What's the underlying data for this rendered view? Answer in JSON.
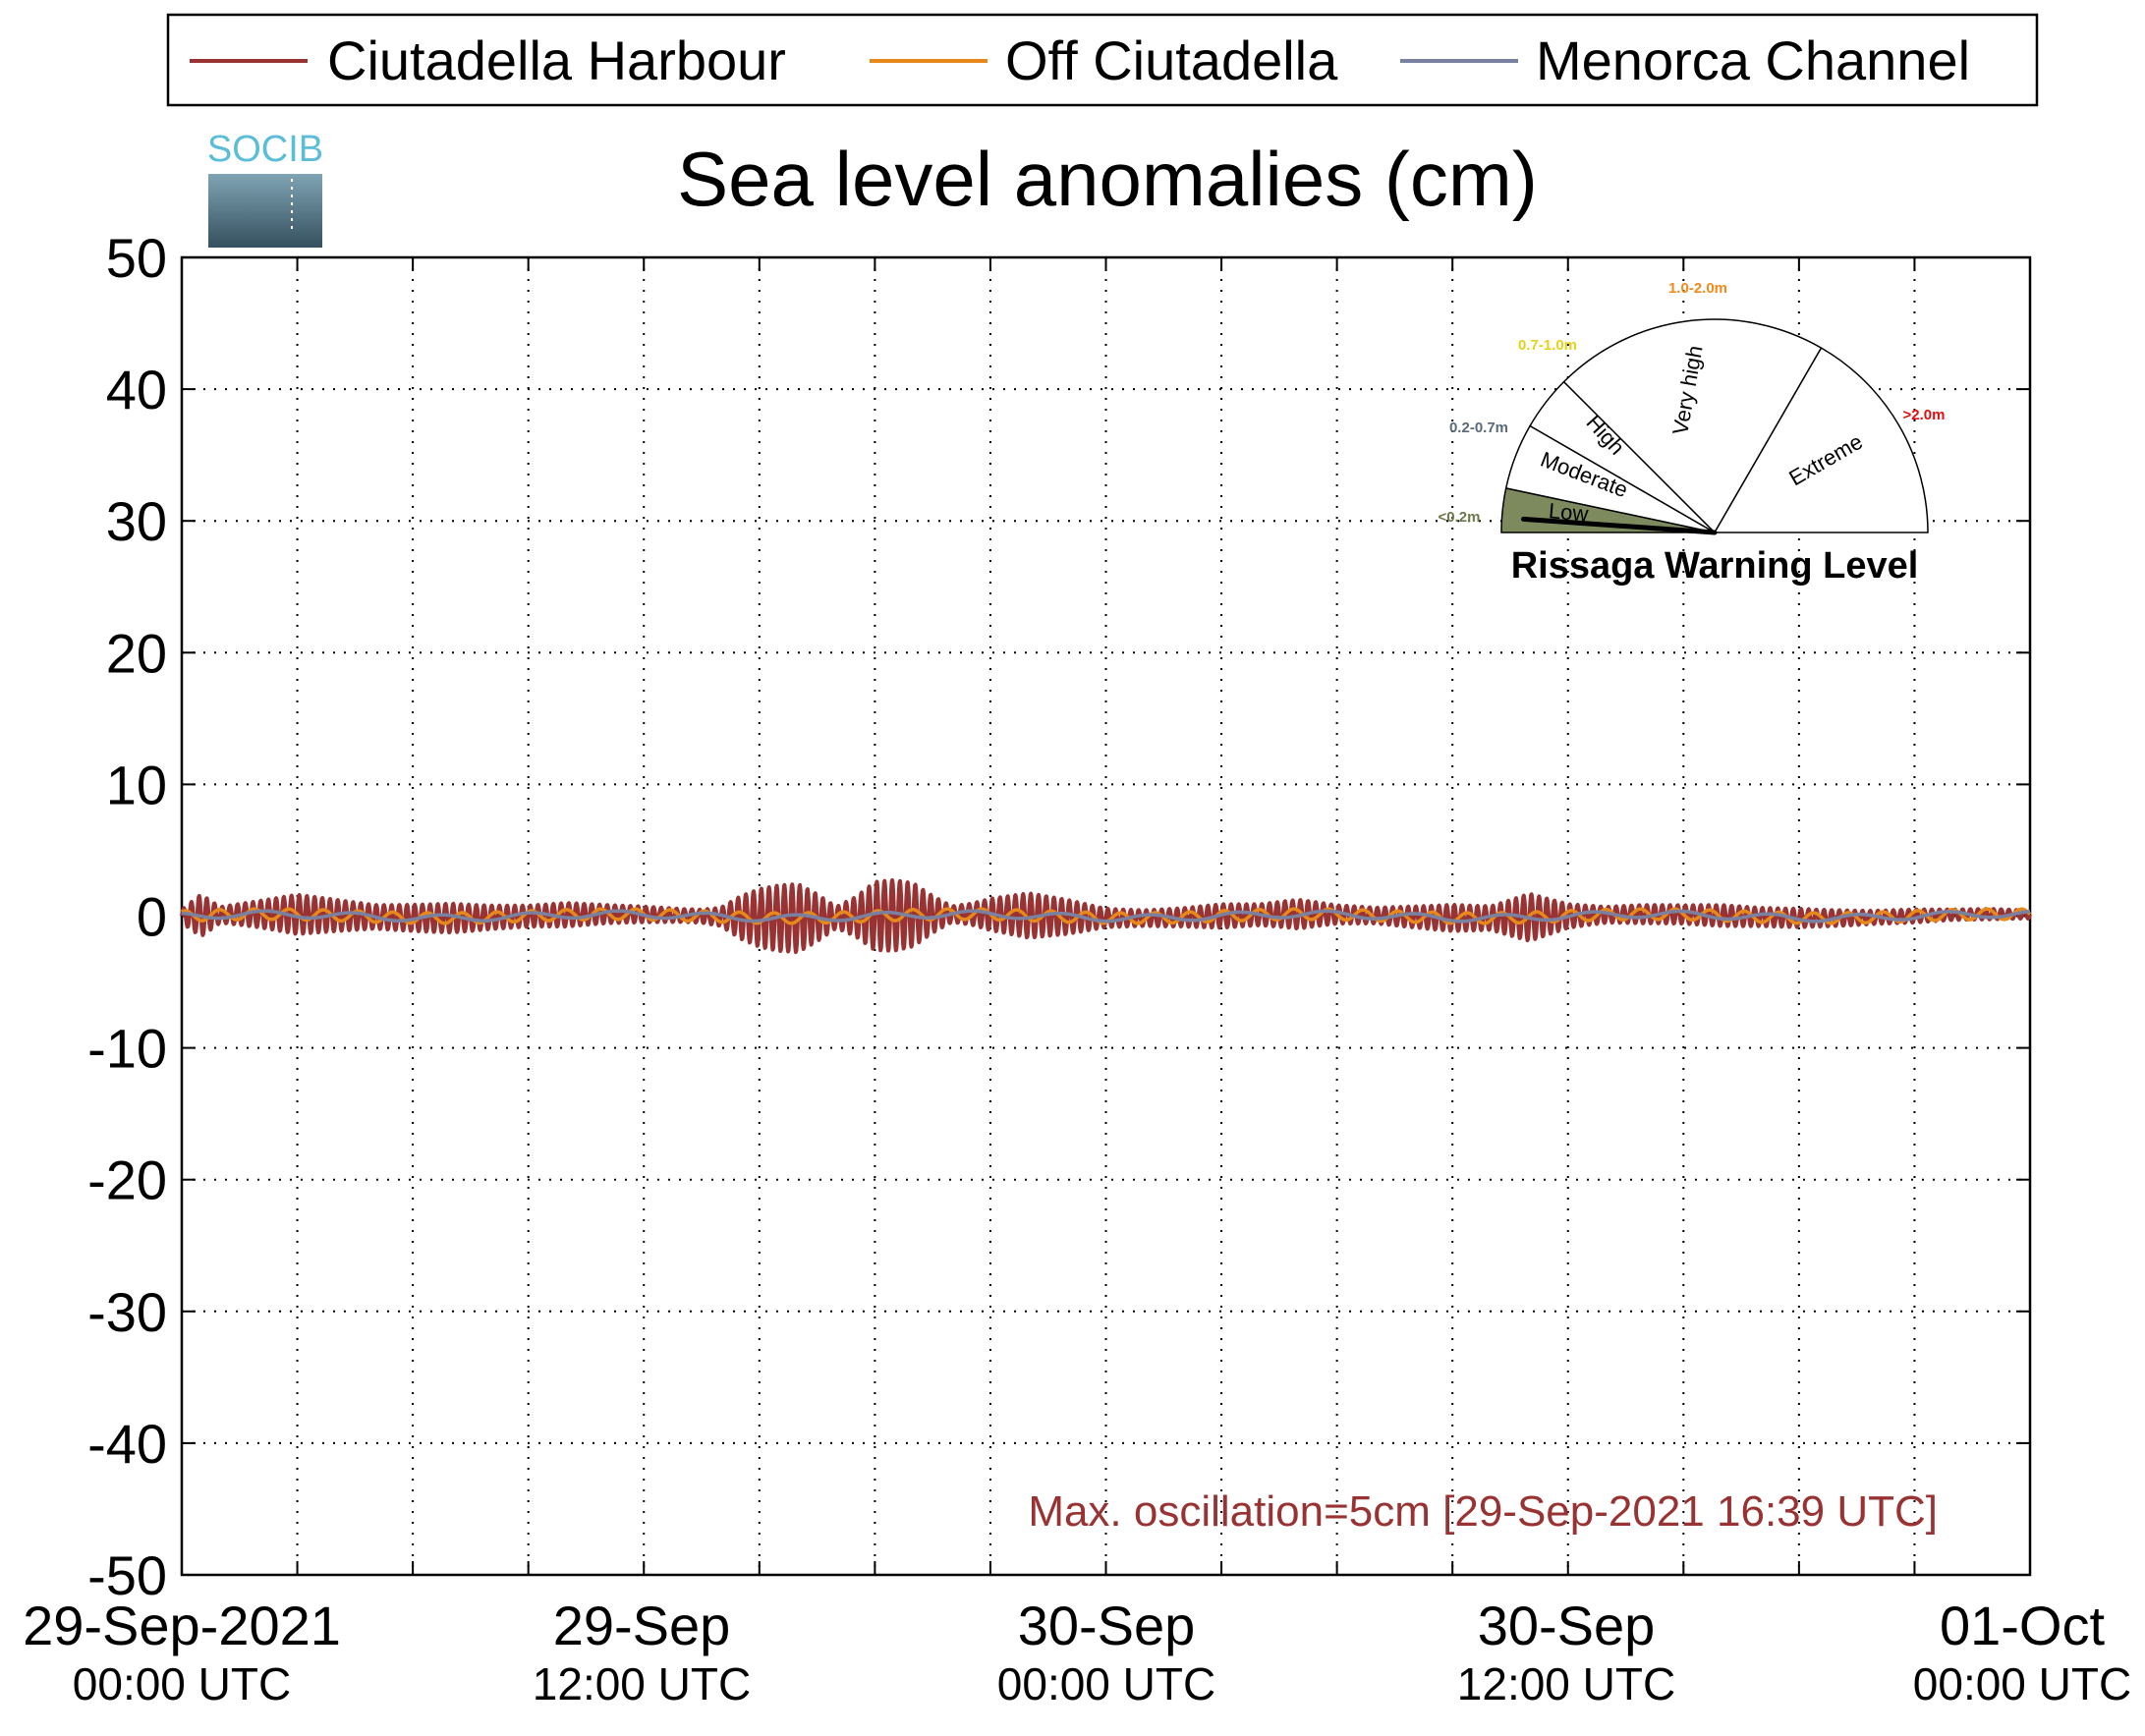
{
  "chart_data": {
    "type": "line",
    "title": "Sea level anomalies (cm)",
    "xlabel": "",
    "ylabel": "",
    "ylim": [
      -50,
      50
    ],
    "yticks": [
      50,
      40,
      30,
      20,
      10,
      0,
      -10,
      -20,
      -30,
      -40,
      -50
    ],
    "xlim": [
      "2021-09-29 00:00",
      "2021-10-01 00:00"
    ],
    "xtick_labels": [
      {
        "date": "29-Sep-2021",
        "time": "00:00 UTC"
      },
      {
        "date": "29-Sep",
        "time": "12:00 UTC"
      },
      {
        "date": "30-Sep",
        "time": "00:00 UTC"
      },
      {
        "date": "30-Sep",
        "time": "12:00 UTC"
      },
      {
        "date": "01-Oct",
        "time": "00:00 UTC"
      }
    ],
    "grid": true,
    "legend_position": "top",
    "series": [
      {
        "name": "Ciutadella Harbour",
        "color": "#993333",
        "envelope_x_hours": [
          0,
          0.5,
          1,
          2,
          3,
          4,
          5,
          6,
          7,
          8,
          9,
          10,
          11,
          12,
          13,
          13.5,
          14,
          14.5,
          15,
          15.5,
          16,
          16.5,
          17,
          17.5,
          18,
          18.5,
          19,
          19.5,
          20,
          20.5,
          21,
          22,
          23,
          24,
          25,
          26,
          27,
          28,
          29,
          30,
          31,
          32,
          33,
          34,
          35,
          36,
          37,
          38,
          39,
          40,
          41,
          42,
          43,
          44,
          45,
          46,
          47,
          48
        ],
        "envelope_amp_cm": [
          0.5,
          1.6,
          0.6,
          1.0,
          1.5,
          1.2,
          0.9,
          1.0,
          1.1,
          0.9,
          0.8,
          0.9,
          0.7,
          0.6,
          0.5,
          0.5,
          0.7,
          1.6,
          2.2,
          2.5,
          2.6,
          1.8,
          0.8,
          1.5,
          2.6,
          2.7,
          2.4,
          1.4,
          0.6,
          0.8,
          1.2,
          1.7,
          1.3,
          0.7,
          0.6,
          0.7,
          0.9,
          0.8,
          1.1,
          0.7,
          0.6,
          0.8,
          1.0,
          0.9,
          1.8,
          0.9,
          0.6,
          0.7,
          0.7,
          0.8,
          0.7,
          0.7,
          0.6,
          0.5,
          0.5,
          0.4,
          0.4,
          0.3
        ]
      },
      {
        "name": "Off Ciutadella",
        "color": "#e6891a",
        "envelope_amp_cm": 0.4
      },
      {
        "name": "Menorca Channel",
        "color": "#7a80a0",
        "envelope_amp_cm": 0.25
      }
    ],
    "annotations": [
      {
        "text": "Max. oscillation=5cm [29-Sep-2021 16:39 UTC]",
        "color": "#993333"
      }
    ]
  },
  "logo": {
    "text": "SOCIB"
  },
  "gauge": {
    "title": "Rissaga Warning Level",
    "current_level": "Low",
    "sectors": [
      {
        "name": "Low",
        "range": "<0.2m",
        "range_color": "#6b7a4a",
        "fill": "#7d8a5e"
      },
      {
        "name": "Moderate",
        "range": "0.2-0.7m",
        "range_color": "#5a6a78",
        "fill": "#ffffff"
      },
      {
        "name": "High",
        "range": "0.7-1.0m",
        "range_color": "#e6d21a",
        "fill": "#ffffff"
      },
      {
        "name": "Very high",
        "range": "1.0-2.0m",
        "range_color": "#f08a1a",
        "fill": "#ffffff"
      },
      {
        "name": "Extreme",
        "range": ">2.0m",
        "range_color": "#e01010",
        "fill": "#ffffff"
      }
    ]
  }
}
